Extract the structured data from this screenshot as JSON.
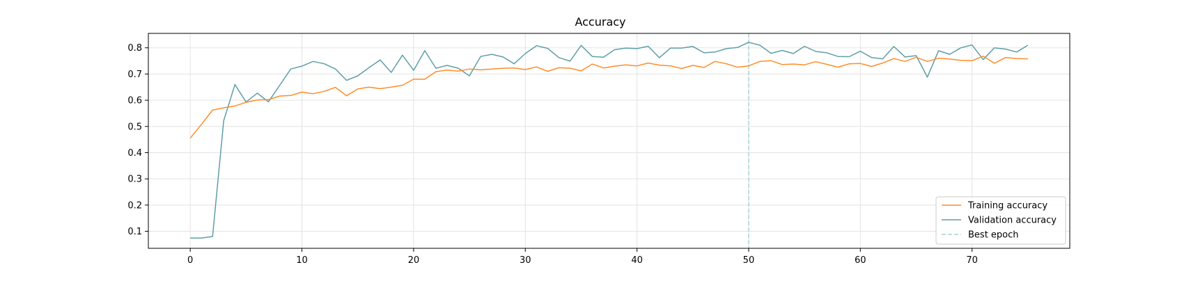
{
  "chart_data": {
    "type": "line",
    "title": "Accuracy",
    "xlabel": "",
    "ylabel": "",
    "xlim": [
      -3.75,
      78.75
    ],
    "ylim": [
      0.035,
      0.855
    ],
    "xticks": [
      0,
      10,
      20,
      30,
      40,
      50,
      60,
      70
    ],
    "yticks": [
      0.1,
      0.2,
      0.3,
      0.4,
      0.5,
      0.6,
      0.7,
      0.8
    ],
    "grid": true,
    "legend_position": "lower right",
    "best_epoch": 50,
    "colors": {
      "training": "#ff8c28",
      "validation": "#5f9ea8",
      "best_epoch": "#a8d4d4",
      "grid": "#e3e3e3"
    },
    "series": [
      {
        "name": "Training accuracy",
        "key": "training",
        "values": [
          0.455,
          0.508,
          0.562,
          0.571,
          0.578,
          0.592,
          0.601,
          0.602,
          0.616,
          0.618,
          0.631,
          0.625,
          0.634,
          0.649,
          0.617,
          0.643,
          0.65,
          0.644,
          0.65,
          0.657,
          0.68,
          0.68,
          0.709,
          0.715,
          0.711,
          0.719,
          0.716,
          0.719,
          0.722,
          0.723,
          0.717,
          0.727,
          0.71,
          0.724,
          0.722,
          0.712,
          0.738,
          0.723,
          0.73,
          0.735,
          0.731,
          0.742,
          0.734,
          0.731,
          0.721,
          0.733,
          0.725,
          0.748,
          0.739,
          0.726,
          0.731,
          0.748,
          0.751,
          0.736,
          0.738,
          0.735,
          0.747,
          0.737,
          0.726,
          0.739,
          0.74,
          0.729,
          0.742,
          0.759,
          0.748,
          0.764,
          0.748,
          0.76,
          0.757,
          0.752,
          0.751,
          0.768,
          0.741,
          0.763,
          0.759,
          0.758
        ]
      },
      {
        "name": "Validation accuracy",
        "key": "validation",
        "values": [
          0.074,
          0.074,
          0.08,
          0.522,
          0.66,
          0.593,
          0.627,
          0.594,
          0.656,
          0.719,
          0.73,
          0.748,
          0.739,
          0.719,
          0.676,
          0.693,
          0.724,
          0.754,
          0.706,
          0.772,
          0.714,
          0.789,
          0.722,
          0.733,
          0.722,
          0.693,
          0.767,
          0.775,
          0.765,
          0.739,
          0.778,
          0.808,
          0.798,
          0.763,
          0.749,
          0.809,
          0.767,
          0.764,
          0.793,
          0.799,
          0.797,
          0.806,
          0.762,
          0.799,
          0.799,
          0.805,
          0.781,
          0.784,
          0.797,
          0.801,
          0.821,
          0.81,
          0.779,
          0.79,
          0.778,
          0.806,
          0.786,
          0.781,
          0.767,
          0.766,
          0.787,
          0.763,
          0.758,
          0.805,
          0.765,
          0.77,
          0.688,
          0.789,
          0.775,
          0.8,
          0.811,
          0.755,
          0.8,
          0.795,
          0.784,
          0.81
        ]
      },
      {
        "name": "Best epoch",
        "key": "best_epoch"
      }
    ]
  }
}
